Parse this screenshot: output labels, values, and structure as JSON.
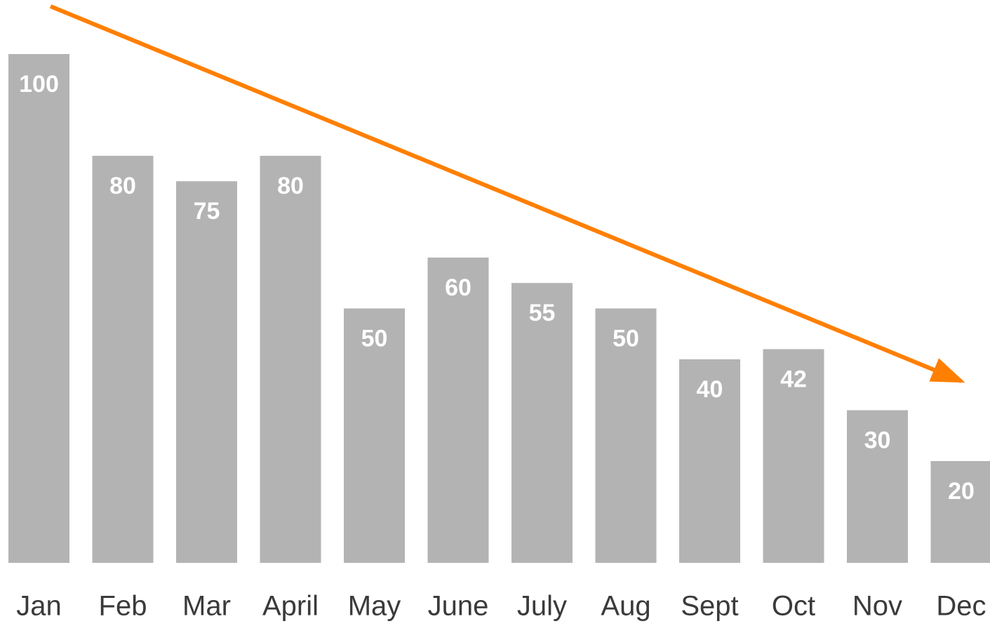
{
  "chart_data": {
    "type": "bar",
    "categories": [
      "Jan",
      "Feb",
      "Mar",
      "April",
      "May",
      "June",
      "July",
      "Aug",
      "Sept",
      "Oct",
      "Nov",
      "Dec"
    ],
    "values": [
      100,
      80,
      75,
      80,
      50,
      60,
      55,
      50,
      40,
      42,
      30,
      20
    ],
    "color": "#b3b3b3",
    "ylim": [
      0,
      100
    ]
  }
}
